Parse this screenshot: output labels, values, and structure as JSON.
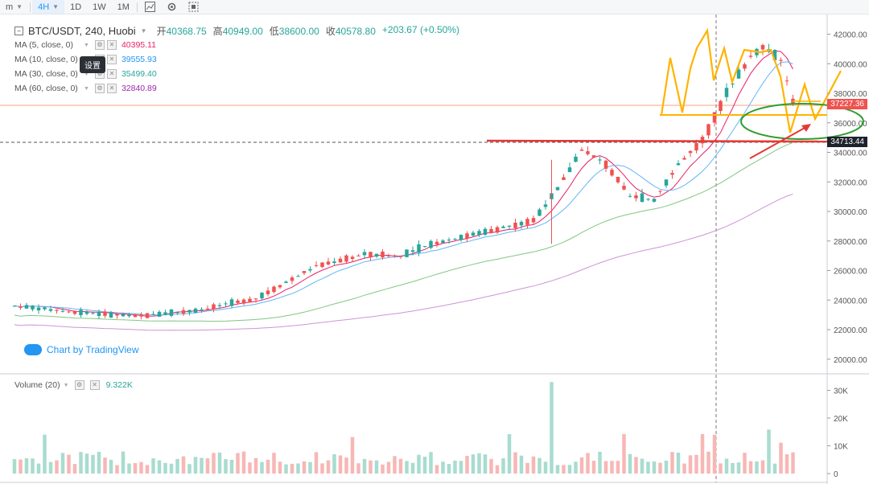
{
  "toolbar": {
    "items": [
      "m",
      "4H",
      "1D",
      "1W",
      "1M"
    ],
    "active": "4H"
  },
  "legend": {
    "symbol": "BTC/USDT, 240, Huobi",
    "open_label": "开",
    "open": "40368.75",
    "high_label": "高",
    "high": "40949.00",
    "low_label": "低",
    "low": "38600.00",
    "close_label": "收",
    "close": "40578.80",
    "change": "+203.67 (+0.50%)",
    "ma": [
      {
        "label": "MA (5, close, 0)",
        "value": "40395.11",
        "color": "#e91e63"
      },
      {
        "label": "MA (10, close, 0)",
        "value": "39555.93",
        "color": "#2196f3"
      },
      {
        "label": "MA (30, close, 0)",
        "value": "35499.40",
        "color": "#26a69a"
      },
      {
        "label": "MA (60, close, 0)",
        "value": "32840.89",
        "color": "#9c27b0"
      }
    ]
  },
  "tooltip": "设置",
  "watermark": "Chart by TradingView",
  "volume": {
    "label": "Volume (20)",
    "value": "9.322K"
  },
  "price_axis": [
    "42000.00",
    "40000.00",
    "38000.00",
    "36000.00",
    "34000.00",
    "32000.00",
    "30000.00",
    "28000.00",
    "26000.00",
    "24000.00",
    "22000.00",
    "20000.00"
  ],
  "volume_axis": [
    "30K",
    "20K",
    "10K",
    "0"
  ],
  "price_labels": {
    "current": "37227.36",
    "marked": "34713.44"
  },
  "colors": {
    "up": "#26a69a",
    "down": "#ef5350",
    "annotation_yellow": "#ffb300",
    "annotation_green": "#2e9e2e",
    "annotation_red": "#e53935"
  }
}
